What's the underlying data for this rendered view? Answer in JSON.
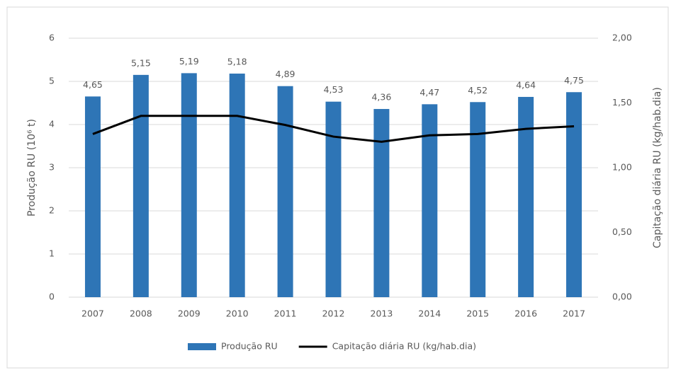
{
  "chart_data": {
    "type": "bar",
    "ylabel": "Produção RU (10⁶ t)",
    "y2label": "Capitação diária RU (kg/hab.dia)",
    "categories": [
      "2007",
      "2008",
      "2009",
      "2010",
      "2011",
      "2012",
      "2013",
      "2014",
      "2015",
      "2016",
      "2017"
    ],
    "series": [
      {
        "name": "Produção RU",
        "type": "bar",
        "color": "#2e75b6",
        "values": [
          4.65,
          5.15,
          5.19,
          5.18,
          4.89,
          4.53,
          4.36,
          4.47,
          4.52,
          4.64,
          4.75
        ],
        "value_labels": [
          "4,65",
          "5,15",
          "5,19",
          "5,18",
          "4,89",
          "4,53",
          "4,36",
          "4,47",
          "4,52",
          "4,64",
          "4,75"
        ]
      },
      {
        "name": "Capitação diária RU (kg/hab.dia)",
        "type": "line",
        "color": "#000000",
        "axis": "y2",
        "values": [
          1.26,
          1.4,
          1.4,
          1.4,
          1.33,
          1.24,
          1.2,
          1.25,
          1.26,
          1.3,
          1.32
        ]
      }
    ],
    "ylim": [
      0,
      6
    ],
    "yticks": [
      0,
      1,
      2,
      3,
      4,
      5,
      6
    ],
    "y2lim": [
      0,
      2
    ],
    "y2ticks": [
      {
        "value": 0,
        "label": "0,00"
      },
      {
        "value": 0.5,
        "label": "0,50"
      },
      {
        "value": 1,
        "label": "1,00"
      },
      {
        "value": 1.5,
        "label": "1,50"
      },
      {
        "value": 2,
        "label": "2,00"
      }
    ],
    "grid": true,
    "legend": "bottom"
  }
}
